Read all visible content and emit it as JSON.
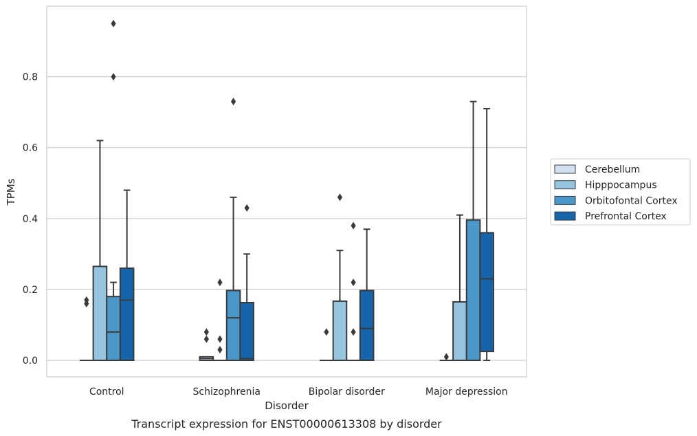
{
  "caption": "Transcript expression for ENST00000613308 by disorder",
  "chart_data": {
    "type": "box",
    "xlabel": "Disorder",
    "ylabel": "TPMs",
    "ylim": [
      -0.045,
      1.0
    ],
    "yticks": [
      0.0,
      0.2,
      0.4,
      0.6,
      0.8
    ],
    "ytick_labels": [
      "0.0",
      "0.2",
      "0.4",
      "0.6",
      "0.8"
    ],
    "grid": "horizontal",
    "legend_position": "right",
    "categories": [
      "Control",
      "Schizophrenia",
      "Bipolar disorder",
      "Major depression"
    ],
    "series": [
      {
        "name": "Cerebellum",
        "color": "#d0e1f2",
        "boxes": [
          {
            "q1": 0,
            "median": 0,
            "q3": 0,
            "whislo": 0,
            "whishi": 0,
            "fliers": [
              0.16,
              0.17
            ]
          },
          {
            "q1": 0,
            "median": 0.005,
            "q3": 0.01,
            "whislo": 0,
            "whishi": 0.01,
            "fliers": [
              0.06,
              0.08
            ]
          },
          {
            "q1": 0,
            "median": 0,
            "q3": 0,
            "whislo": 0,
            "whishi": 0,
            "fliers": [
              0.08
            ]
          },
          {
            "q1": 0,
            "median": 0,
            "q3": 0,
            "whislo": 0,
            "whishi": 0,
            "fliers": [
              0.01
            ]
          }
        ]
      },
      {
        "name": "Hipppocampus",
        "color": "#94c4df",
        "boxes": [
          {
            "q1": 0,
            "median": 0,
            "q3": 0.265,
            "whislo": 0,
            "whishi": 0.62,
            "fliers": []
          },
          {
            "q1": 0,
            "median": 0,
            "q3": 0,
            "whislo": 0,
            "whishi": 0,
            "fliers": [
              0.03,
              0.06,
              0.22
            ]
          },
          {
            "q1": 0,
            "median": 0,
            "q3": 0.167,
            "whislo": 0,
            "whishi": 0.31,
            "fliers": [
              0.46
            ]
          },
          {
            "q1": 0,
            "median": 0,
            "q3": 0.165,
            "whislo": 0,
            "whishi": 0.41,
            "fliers": []
          }
        ]
      },
      {
        "name": "Orbitofontal Cortex",
        "color": "#4a98c9",
        "boxes": [
          {
            "q1": 0,
            "median": 0.08,
            "q3": 0.18,
            "whislo": 0,
            "whishi": 0.22,
            "fliers": [
              0.8,
              0.95
            ]
          },
          {
            "q1": 0,
            "median": 0.12,
            "q3": 0.197,
            "whislo": 0,
            "whishi": 0.46,
            "fliers": [
              0.73
            ]
          },
          {
            "q1": 0,
            "median": 0,
            "q3": 0,
            "whislo": 0,
            "whishi": 0,
            "fliers": [
              0.08,
              0.22,
              0.38
            ]
          },
          {
            "q1": 0,
            "median": 0,
            "q3": 0.396,
            "whislo": 0,
            "whishi": 0.73,
            "fliers": []
          }
        ]
      },
      {
        "name": "Prefrontal Cortex",
        "color": "#1764ab",
        "boxes": [
          {
            "q1": 0,
            "median": 0.17,
            "q3": 0.26,
            "whislo": 0,
            "whishi": 0.48,
            "fliers": []
          },
          {
            "q1": 0,
            "median": 0.005,
            "q3": 0.163,
            "whislo": 0,
            "whishi": 0.3,
            "fliers": [
              0.43
            ]
          },
          {
            "q1": 0,
            "median": 0.09,
            "q3": 0.197,
            "whislo": 0,
            "whishi": 0.37,
            "fliers": []
          },
          {
            "q1": 0.025,
            "median": 0.23,
            "q3": 0.36,
            "whislo": 0,
            "whishi": 0.71,
            "fliers": []
          }
        ]
      }
    ]
  }
}
